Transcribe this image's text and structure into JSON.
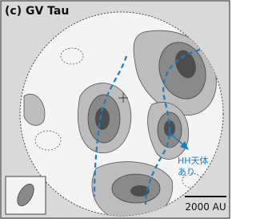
{
  "title": "(c) GV Tau",
  "annotation": [
    "HH天体",
    "あり"
  ],
  "scale_bar": "2000 AU"
}
